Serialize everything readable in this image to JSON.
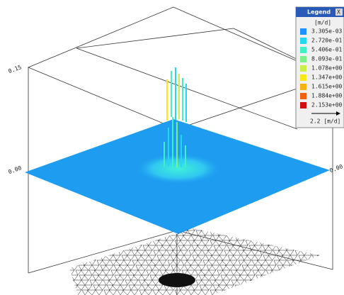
{
  "axis_labels": {
    "z_top": "0.15",
    "z_left": "0.00",
    "z_right": "0.00"
  },
  "legend": {
    "title": "Legend",
    "close": "X",
    "unit": "[m/d]",
    "entries": [
      {
        "label": "3.305e-03",
        "color": "#1e90ff"
      },
      {
        "label": "2.720e-01",
        "color": "#22d8f0"
      },
      {
        "label": "5.406e-01",
        "color": "#40f0c8"
      },
      {
        "label": "8.093e-01",
        "color": "#7cf08a"
      },
      {
        "label": "1.078e+00",
        "color": "#c8f048"
      },
      {
        "label": "1.347e+00",
        "color": "#f8e818"
      },
      {
        "label": "1.615e+00",
        "color": "#f8b010"
      },
      {
        "label": "1.884e+00",
        "color": "#f06010"
      },
      {
        "label": "2.153e+00",
        "color": "#d01010"
      }
    ],
    "arrow_label": "2.2 [m/d]"
  }
}
